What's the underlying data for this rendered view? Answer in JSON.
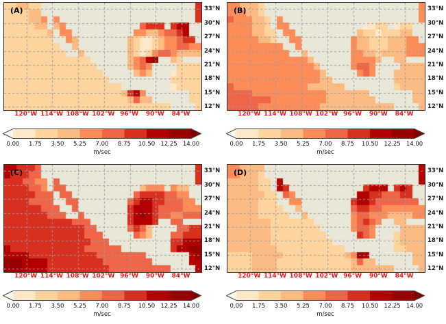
{
  "figure": {
    "background": "#ffffff",
    "layout": "2x2-panels"
  },
  "axes": {
    "lon": {
      "labels": [
        "120°W",
        "114°W",
        "108°W",
        "102°W",
        "96°W",
        "90°W",
        "84°W"
      ],
      "values": [
        120,
        114,
        108,
        102,
        96,
        90,
        84
      ],
      "extent_west": 125.2,
      "extent_east": 79.4,
      "label_color": "#e8191c"
    },
    "lat": {
      "labels": [
        "33°N",
        "30°N",
        "27°N",
        "24°N",
        "21°N",
        "18°N",
        "15°N",
        "12°N"
      ],
      "values": [
        33,
        30,
        27,
        24,
        21,
        18,
        15,
        12
      ],
      "extent_north": 34.36,
      "extent_south": 11.3,
      "label_color": "#1a1a1a"
    },
    "grid_color": "#9b9b9b",
    "frame_color": "#2a2a2a"
  },
  "colorbar": {
    "tick_labels": [
      "0.00",
      "1.75",
      "3.50",
      "5.25",
      "7.00",
      "8.75",
      "10.50",
      "12.25",
      "14.00"
    ],
    "unit": "m/sec",
    "segment_colors": [
      "#fee8c8",
      "#fdd49e",
      "#fdbb84",
      "#fc8d59",
      "#ef6548",
      "#d7301f",
      "#b30000",
      "#990000"
    ],
    "under_color": "#fff9f0",
    "over_color": "#7f0000",
    "outline_color": "#454545",
    "tick_color": "#111111"
  },
  "chart_data": {
    "type": "heatmap",
    "title": "",
    "units": "m/sec",
    "value_bins": [
      0,
      1.75,
      3.5,
      5.25,
      7.0,
      8.75,
      10.5,
      12.25,
      14.0
    ],
    "palette": [
      "#fee8c8",
      "#fdd49e",
      "#fdbb84",
      "#fc8d59",
      "#ef6548",
      "#d7301f",
      "#b30000",
      "#990000",
      "#7f0000"
    ],
    "land_color": "#e9e7d8",
    "nodata_color": "#ffffff",
    "grid_encoding": {
      "L": "land",
      ".": "no-data",
      "digit": "wind-speed bin index d, speed between d*1.75 and (d+1)*1.75 m/sec"
    },
    "grid_size": {
      "cols": 32,
      "rows": 16
    },
    "panels": [
      {
        "label": "(A)",
        "grid": [
          "112211LLLLLLLLLLLLLLLLLLLLLLLLL5",
          "111122LLLLLLLLLLLLLLLLLLLLLLLLL5",
          "1111223L3LLLLLLLLLLLLLLLLLLLLLL5",
          "1111122L23LLLLLLLLLLLL4555L566LL",
          "11111112L33LLLLLLLLLL332234456LL",
          "11111111LL32LLLLLLLL21001233455L",
          "111111111LL2LLLLLLLL210012334433",
          "1111111111LL2LLLLLLL210134432222",
          "11111111111111LLLLLL23467LL21LLL",
          "111111111111111LLLLL2343LLLL1111",
          "1111111111111111LLLLL232LLL01111",
          "11111111111111111LLLLLLLLLL11111",
          "1111111111111111111LLLLLLLL01111",
          "11111111111111111112563LLLLLLL11",
          "111111111111111111112422LLLLLL11",
          "111111111111111111111111111LLLL1"
        ]
      },
      {
        "label": "(B)",
        "grid": [
          "332221LLLLLLLLLLLLLLLLLLLLLLLLL3",
          "333221LLLLLLLLLLLLLLLLLLLLLLLLL3",
          "4333221L3LLLLLLLLLLLLLLLLLLLLLL3",
          "3333221L33LLLLLLLLLLLL0011L011LL",
          "33332211L33LLLLLLLLLL211011122LL",
          "33333221LL33LLLLLLLL32211122233L",
          "333333333LL3LLLLLLLL322111222333",
          "3333333333LL2LLLLLLL332212222333",
          "33333333333332LLLLLL33332LL22LLL",
          "333333333333332LLLLL3443LLLL2222",
          "3333333333333332LLLLL343LLL22222",
          "33333333333333322LLLLLLLLLL22222",
          "4333333333333222222LLLLLLLL12222",
          "44443333333333332222222LLLLLLL22",
          "444444433333333322222222LLLLLL22",
          "444443333333333222222222222LLLL2"
        ]
      },
      {
        "label": "(C)",
        "grid": [
          "665554LLLLLLLLLLLLLLLLLLLLLLLLL5",
          "655544LLLLLLLLLLLLLLLLLLLLLLLLL5",
          "5554433L4LLLLLLLLLLLLLLLLLLLLLL5",
          "5555443L44LLLLLLLLLLLL2333L322LL",
          "55555444L44LLLLLLLLLL455554433LL",
          "55554444LL44LLLLLLLL45665544433L",
          "555555444LL4LLLLLLLL566654444333",
          "5555555444LL4LLLLLLL567654433444",
          "55555555555444LLLLLL56665LL44LLL",
          "555555555555544LLLLL4542LLLL4455",
          "5555555555555444LLLLL432LLL44555",
          "55555555555555444LLLLLLLLLL55666",
          "6555555555555444444LLLLLLLL56677",
          "66665555555555544444444LLLLLLL67",
          "777666655555555544444444LLLLLL66",
          "777666655555555554444444444LLLL6"
        ]
      },
      {
        "label": "(D)",
        "grid": [
          "332222LLLLLLLLLLLLLLLLLLLLLLLLL6",
          "332221LLLLLLLLLLLLLLLLLLLLLLLLL6",
          "2222211L6LLLLLLLLLLLLLLLLLLLLLL6",
          "2222211L65LLLLLLLLLLLL5666L565LL",
          "22222211L43LLLLLLLLLL665544455LL",
          "22222111LL33LLLLLLLL56654444444L",
          "222221111LL2LLLLLLLL455443333333",
          "2222211111LL2LLLLLLL344333222233",
          "22222221111111LLLLLL34543LL22LLL",
          "222222211111111LLLLL3443LLLL2222",
          "2222222111111111LLLLL543LLL12222",
          "22222221111111111LLLLLLLLLL12222",
          "2222222211111111111LLLLLLLL11222",
          "11112222211111111112376LLLLLLL22",
          "111122221111111111112422LLLLLL22",
          "111122221111111111112222222LLLL2"
        ]
      }
    ]
  }
}
